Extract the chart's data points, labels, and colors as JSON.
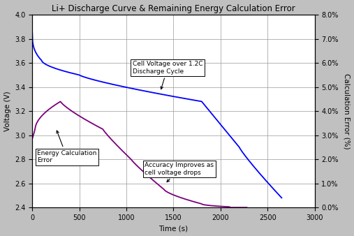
{
  "title": "Li+ Discharge Curve & Remaining Energy Calculation Error",
  "xlabel": "Time (s)",
  "ylabel_left": "Voltage (V)",
  "ylabel_right": "Calculation Error (%)",
  "xlim": [
    0,
    3000
  ],
  "ylim_left": [
    2.4,
    4.0
  ],
  "ylim_right": [
    2.4,
    4.0
  ],
  "xticks": [
    0,
    500,
    1000,
    1500,
    2000,
    2500,
    3000
  ],
  "yticks_left": [
    2.4,
    2.6,
    2.8,
    3.0,
    3.2,
    3.4,
    3.6,
    3.8,
    4.0
  ],
  "yticks_right_labels": [
    "0.0%",
    "1.0%",
    "2.0%",
    "3.0%",
    "4.0%",
    "5.0%",
    "6.0%",
    "7.0%",
    "8.0%"
  ],
  "yticks_right_vals": [
    2.4,
    2.6,
    2.8,
    3.0,
    3.2,
    3.4,
    3.6,
    3.8,
    4.0
  ],
  "voltage_color": "#0000FF",
  "error_color": "#7B007B",
  "figure_bg_color": "#C0C0C0",
  "plot_bg_color": "#FFFFFF",
  "annotation1_text": "Cell Voltage over 1.2C\nDischarge Cycle",
  "annotation2_text": "Energy Calculation\nError",
  "annotation3_text": "Accuracy Improves as\ncell voltage drops"
}
